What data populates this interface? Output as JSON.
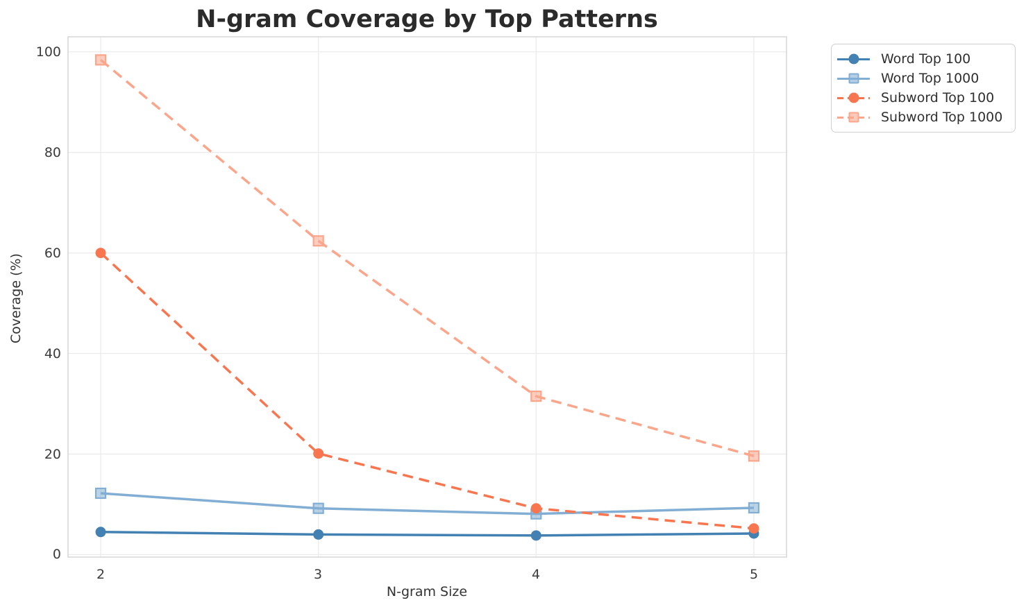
{
  "title": "N-gram Coverage by Top Patterns",
  "chart_data": {
    "type": "line",
    "title": "N-gram Coverage by Top Patterns",
    "xlabel": "N-gram Size",
    "ylabel": "Coverage (%)",
    "x": [
      2,
      3,
      4,
      5
    ],
    "x_tick_labels": [
      "2",
      "3",
      "4",
      "5"
    ],
    "y_ticks": [
      0,
      20,
      40,
      60,
      80,
      100
    ],
    "y_tick_labels": [
      "0",
      "20",
      "40",
      "60",
      "80",
      "100"
    ],
    "xlim": [
      1.85,
      5.15
    ],
    "ylim": [
      -0.5,
      103.0
    ],
    "grid": true,
    "legend_position": "outside-upper-right",
    "background_color": "#ffffff",
    "gridline_color": "#ebebeb",
    "series": [
      {
        "name": "Word Top 100",
        "values": [
          4.5,
          4.0,
          3.8,
          4.2
        ],
        "color": "#4381b2",
        "line_style": "solid",
        "marker": "circle"
      },
      {
        "name": "Word Top 1000",
        "values": [
          12.2,
          9.2,
          8.1,
          9.3
        ],
        "color": "#82aed4",
        "line_style": "solid",
        "marker": "square"
      },
      {
        "name": "Subword Top 100",
        "values": [
          60.0,
          20.1,
          9.2,
          5.2
        ],
        "color": "#f8764f",
        "line_style": "dashed",
        "marker": "circle"
      },
      {
        "name": "Subword Top 1000",
        "values": [
          98.4,
          62.4,
          31.5,
          19.6
        ],
        "color": "#fba58a",
        "line_style": "dashed",
        "marker": "square"
      }
    ]
  }
}
